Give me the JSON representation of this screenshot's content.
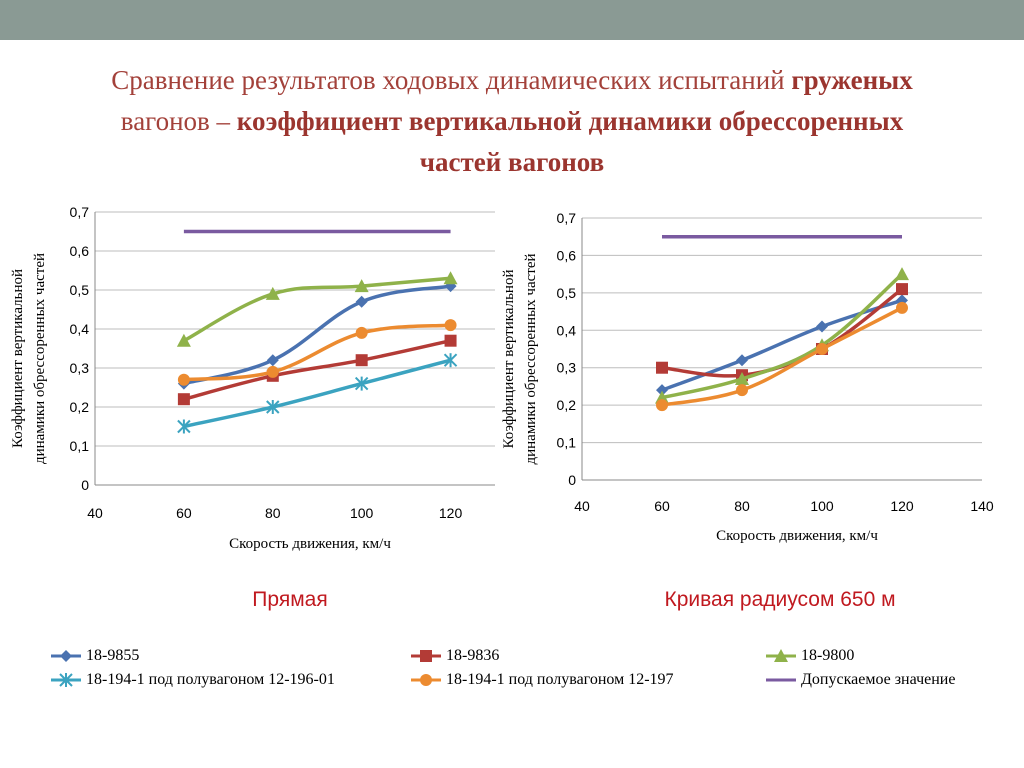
{
  "title": {
    "part1": "Сравнение результатов ходовых динамических испытаний ",
    "part1_bold": "груженых",
    "part2": "вагонов – ",
    "part2_bold": "коэффициент вертикальной динамики обрессоренных",
    "part3_bold": "частей вагонов"
  },
  "captions": {
    "left": "Прямая",
    "right": "Кривая радиусом 650 м"
  },
  "legend": [
    {
      "label": "18-9855",
      "color": "#4a72b0",
      "marker": "diamond"
    },
    {
      "label": "18-9836",
      "color": "#b33b36",
      "marker": "square"
    },
    {
      "label": "18-9800",
      "color": "#8fb24a",
      "marker": "triangle"
    },
    {
      "label": "18-194-1 под полувагоном 12-196-01",
      "color": "#3ba3c0",
      "marker": "star"
    },
    {
      "label": "18-194-1 под полувагоном 12-197",
      "color": "#ec8b30",
      "marker": "circle"
    },
    {
      "label": "Допускаемое значение",
      "color": "#7a5aa0",
      "marker": "none"
    }
  ],
  "chart_data": [
    {
      "type": "line",
      "title": "Прямая",
      "xlabel": "Скорость движения, км/ч",
      "ylabel": "Коэффициент вертикальной динамики обрессоренных частей",
      "xlim": [
        40,
        130
      ],
      "ylim": [
        0,
        0.7
      ],
      "xticks": [
        "40",
        "60",
        "80",
        "100",
        "120"
      ],
      "yticks": [
        "0",
        "0,1",
        "0,2",
        "0,3",
        "0,4",
        "0,5",
        "0,6",
        "0,7"
      ],
      "grid": true,
      "series": [
        {
          "name": "18-9855",
          "x": [
            60,
            80,
            100,
            120
          ],
          "values": [
            0.26,
            0.32,
            0.47,
            0.51
          ]
        },
        {
          "name": "18-9836",
          "x": [
            60,
            80,
            100,
            120
          ],
          "values": [
            0.22,
            0.28,
            0.32,
            0.37
          ]
        },
        {
          "name": "18-9800",
          "x": [
            60,
            80,
            100,
            120
          ],
          "values": [
            0.37,
            0.49,
            0.51,
            0.53
          ]
        },
        {
          "name": "18-194-1 под полувагоном 12-196-01",
          "x": [
            60,
            80,
            100,
            120
          ],
          "values": [
            0.15,
            0.2,
            0.26,
            0.32
          ]
        },
        {
          "name": "18-194-1 под полувагоном 12-197",
          "x": [
            60,
            80,
            100,
            120
          ],
          "values": [
            0.27,
            0.29,
            0.39,
            0.41
          ]
        },
        {
          "name": "Допускаемое значение",
          "x": [
            60,
            120
          ],
          "values": [
            0.65,
            0.65
          ]
        }
      ]
    },
    {
      "type": "line",
      "title": "Кривая радиусом 650 м",
      "xlabel": "Скорость движения, км/ч",
      "ylabel": "Коэффициент вертикальной динамики обрессоренных частей",
      "xlim": [
        40,
        140
      ],
      "ylim": [
        0,
        0.7
      ],
      "xticks": [
        "40",
        "60",
        "80",
        "100",
        "120",
        "140"
      ],
      "yticks": [
        "0",
        "0,1",
        "0,2",
        "0,3",
        "0,4",
        "0,5",
        "0,6",
        "0,7"
      ],
      "grid": true,
      "series": [
        {
          "name": "18-9855",
          "x": [
            60,
            80,
            100,
            120
          ],
          "values": [
            0.24,
            0.32,
            0.41,
            0.48
          ]
        },
        {
          "name": "18-9836",
          "x": [
            60,
            80,
            100,
            120
          ],
          "values": [
            0.3,
            0.28,
            0.35,
            0.51
          ]
        },
        {
          "name": "18-9800",
          "x": [
            60,
            80,
            100,
            120
          ],
          "values": [
            0.22,
            0.27,
            0.36,
            0.55
          ]
        },
        {
          "name": "18-194-1 под полувагоном 12-197",
          "x": [
            60,
            80,
            100,
            120
          ],
          "values": [
            0.2,
            0.24,
            0.35,
            0.46
          ]
        },
        {
          "name": "Допускаемое значение",
          "x": [
            60,
            120
          ],
          "values": [
            0.65,
            0.65
          ]
        }
      ]
    }
  ]
}
